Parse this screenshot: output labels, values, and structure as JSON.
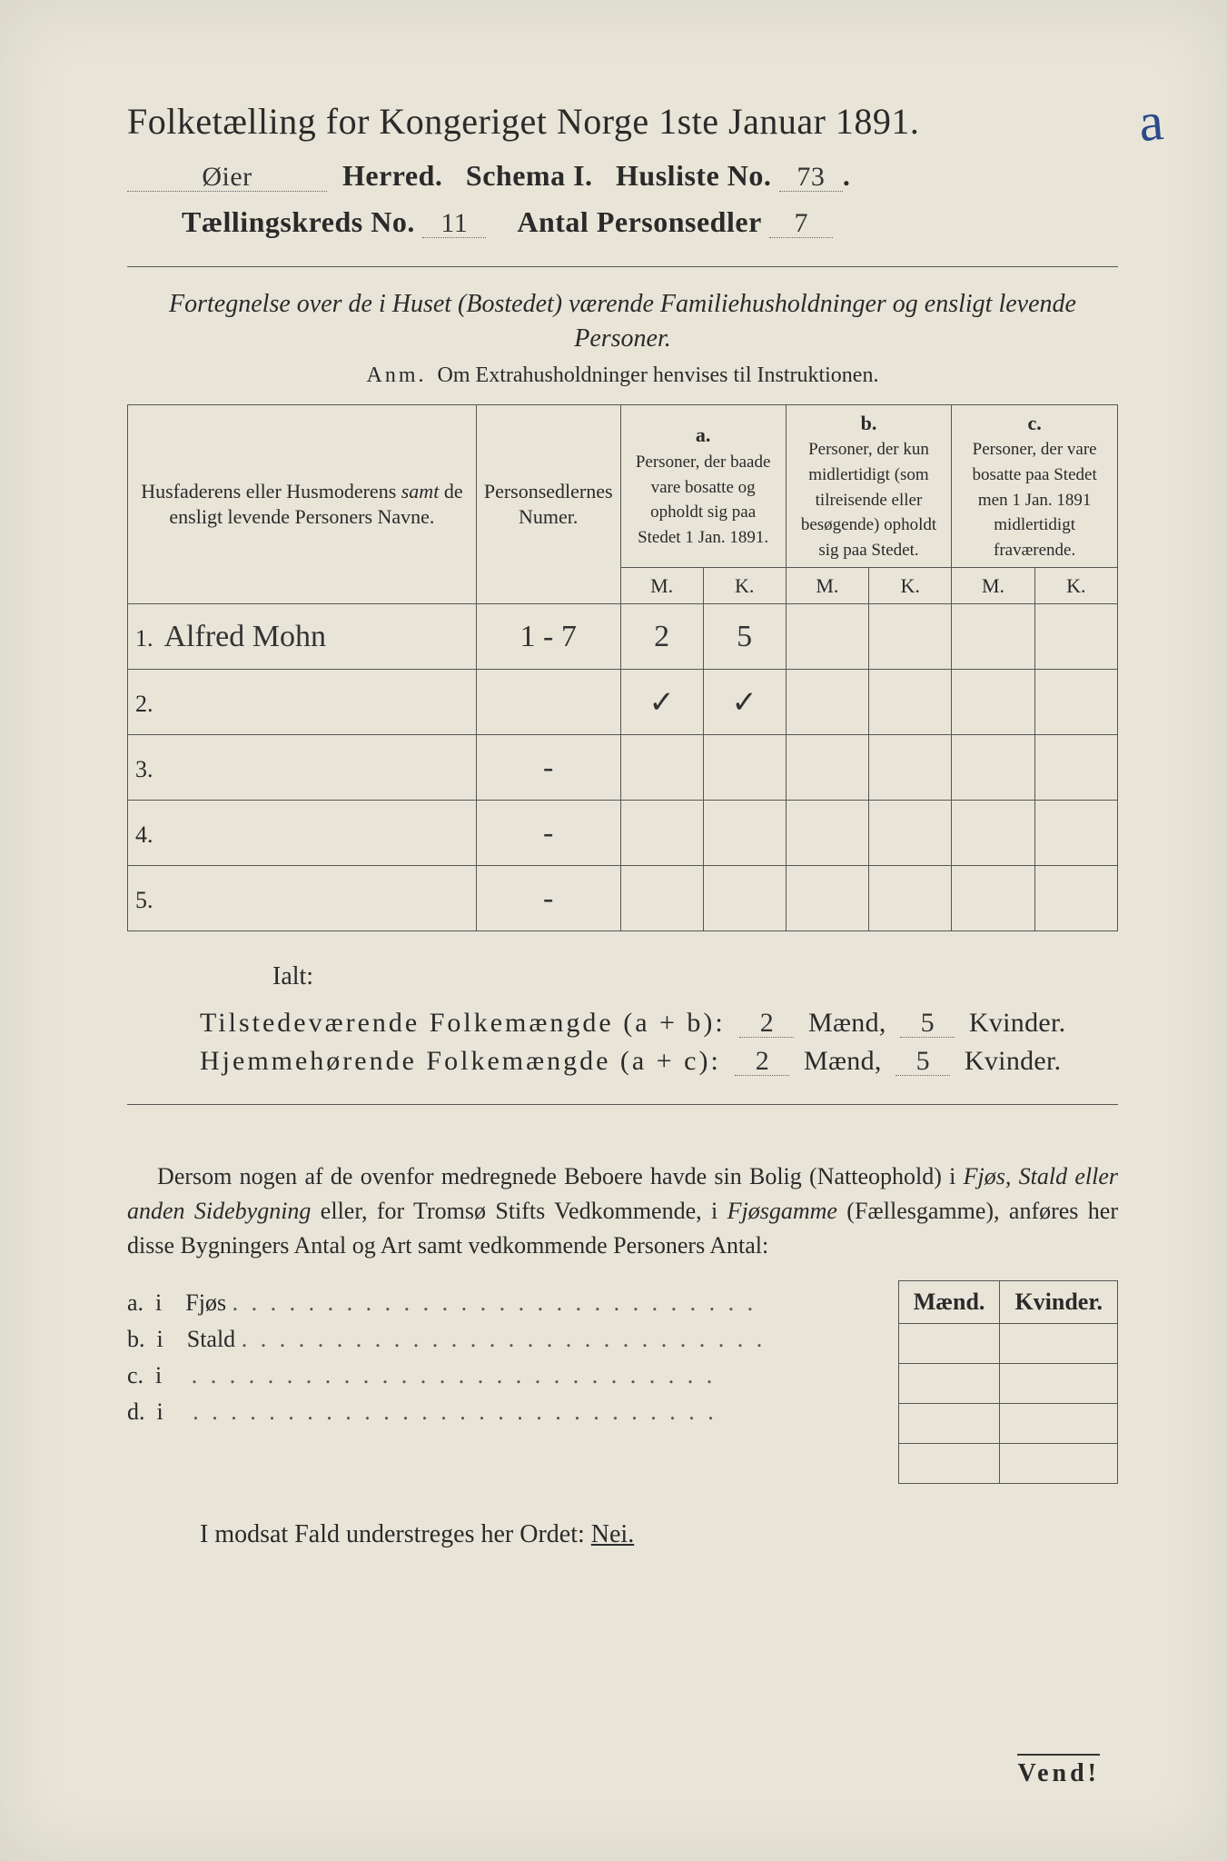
{
  "title": "Folketælling for Kongeriget Norge 1ste Januar 1891.",
  "annotation": "a",
  "header": {
    "herred_value": "Øier",
    "herred_label": "Herred.",
    "schema_label": "Schema I.",
    "husliste_label": "Husliste No.",
    "husliste_value": "73",
    "kreds_label": "Tællingskreds No.",
    "kreds_value": "11",
    "sedler_label": "Antal Personsedler",
    "sedler_value": "7"
  },
  "subtitle": "Fortegnelse over de i Huset (Bostedet) værende Familiehusholdninger og ensligt levende Personer.",
  "anm_lead": "Anm.",
  "anm_text": "Om Extrahusholdninger henvises til Instruktionen.",
  "table": {
    "col1": "Husfaderens eller Husmoderens samt de ensligt levende Personers Navne.",
    "col1_italic": "samt",
    "col2": "Personsedlernes Numer.",
    "col_a_head": "a.",
    "col_a_text": "Personer, der baade vare bosatte og opholdt sig paa Stedet 1 Jan. 1891.",
    "col_b_head": "b.",
    "col_b_text": "Personer, der kun midlertidigt (som tilreisende eller besøgende) opholdt sig paa Stedet.",
    "col_c_head": "c.",
    "col_c_text": "Personer, der vare bosatte paa Stedet men 1 Jan. 1891 midlertidigt fraværende.",
    "m": "M.",
    "k": "K.",
    "rows": [
      {
        "n": "1.",
        "name": "Alfred Mohn",
        "num": "1 - 7",
        "a_m": "2",
        "a_k": "5",
        "b_m": "",
        "b_k": "",
        "c_m": "",
        "c_k": ""
      },
      {
        "n": "2.",
        "name": "",
        "num": "",
        "a_m": "✓",
        "a_k": "✓",
        "b_m": "",
        "b_k": "",
        "c_m": "",
        "c_k": ""
      },
      {
        "n": "3.",
        "name": "",
        "num": "-",
        "a_m": "",
        "a_k": "",
        "b_m": "",
        "b_k": "",
        "c_m": "",
        "c_k": ""
      },
      {
        "n": "4.",
        "name": "",
        "num": "-",
        "a_m": "",
        "a_k": "",
        "b_m": "",
        "b_k": "",
        "c_m": "",
        "c_k": ""
      },
      {
        "n": "5.",
        "name": "",
        "num": "-",
        "a_m": "",
        "a_k": "",
        "b_m": "",
        "b_k": "",
        "c_m": "",
        "c_k": ""
      }
    ]
  },
  "ialt": "Ialt:",
  "summary": {
    "line1_label": "Tilstedeværende Folkemængde (a + b):",
    "line2_label": "Hjemmehørende Folkemængde (a + c):",
    "maend": "Mænd,",
    "kvinder": "Kvinder.",
    "v1_m": "2",
    "v1_k": "5",
    "v2_m": "2",
    "v2_k": "5"
  },
  "paragraph": "Dersom nogen af de ovenfor medregnede Beboere havde sin Bolig (Natteophold) i Fjøs, Stald eller anden Sidebygning eller, for Tromsø Stifts Vedkommende, i Fjøsgamme (Fællesgamme), anføres her disse Bygningers Antal og Art samt vedkommende Personers Antal:",
  "lower": {
    "maend": "Mænd.",
    "kvinder": "Kvinder.",
    "items": [
      {
        "p": "a.",
        "i": "i",
        "label": "Fjøs"
      },
      {
        "p": "b.",
        "i": "i",
        "label": "Stald"
      },
      {
        "p": "c.",
        "i": "i",
        "label": ""
      },
      {
        "p": "d.",
        "i": "i",
        "label": ""
      }
    ]
  },
  "nei_line_pre": "I modsat Fald understreges her Ordet:",
  "nei": "Nei.",
  "vend": "Vend!"
}
